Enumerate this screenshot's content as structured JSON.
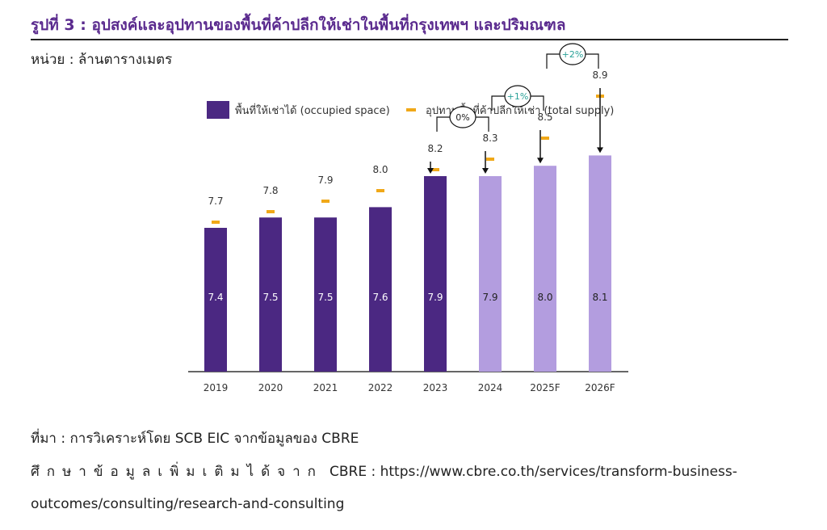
{
  "header": {
    "title": "รูปที่ 3 : อุปสงค์และอุปทานของพื้นที่ค้าปลีกให้เช่าในพื้นที่กรุงเทพฯ และปริมณฑล",
    "unit": "หน่วย : ล้านตารางเมตร"
  },
  "footer": {
    "source": "ที่มา : การวิเคราะห์โดย SCB EIC จากข้อมูลของ CBRE",
    "more_label": "ศึกษาข้อมูลเพิ่มเติมได้จาก",
    "more_url_line1": "CBRE : https://www.cbre.co.th/services/transform-business-",
    "more_url_line2": "outcomes/consulting/research-and-consulting"
  },
  "chart_data": {
    "type": "bar",
    "categories": [
      "2019",
      "2020",
      "2021",
      "2022",
      "2023",
      "2024",
      "2025F",
      "2026F"
    ],
    "series": [
      {
        "name": "พื้นที่ให้เช่าได้ (occupied space)",
        "type": "bar",
        "values": [
          7.4,
          7.5,
          7.5,
          7.6,
          7.9,
          7.9,
          8.0,
          8.1
        ]
      },
      {
        "name": "อุปทานพื้นที่ค้าปลีกให้เช่า (total supply)",
        "type": "marker",
        "values": [
          7.7,
          7.8,
          7.9,
          8.0,
          8.2,
          8.3,
          8.5,
          8.9
        ]
      }
    ],
    "growth_annotations": [
      {
        "from": "2023",
        "to": "2024",
        "label": "0%"
      },
      {
        "from": "2024",
        "to": "2025F",
        "label": "+1%"
      },
      {
        "from": "2025F",
        "to": "2026F",
        "label": "+2%"
      }
    ],
    "arrows_at": [
      "2023",
      "2024",
      "2025F",
      "2026F"
    ],
    "forecast_from": "2024",
    "colors": {
      "actual": "#4b2882",
      "forecast": "#b39ddf",
      "supply": "#f0a818",
      "growth_text": "#2aa198"
    },
    "legend_position": "top",
    "grid": false,
    "xlabel": "",
    "ylabel": ""
  }
}
